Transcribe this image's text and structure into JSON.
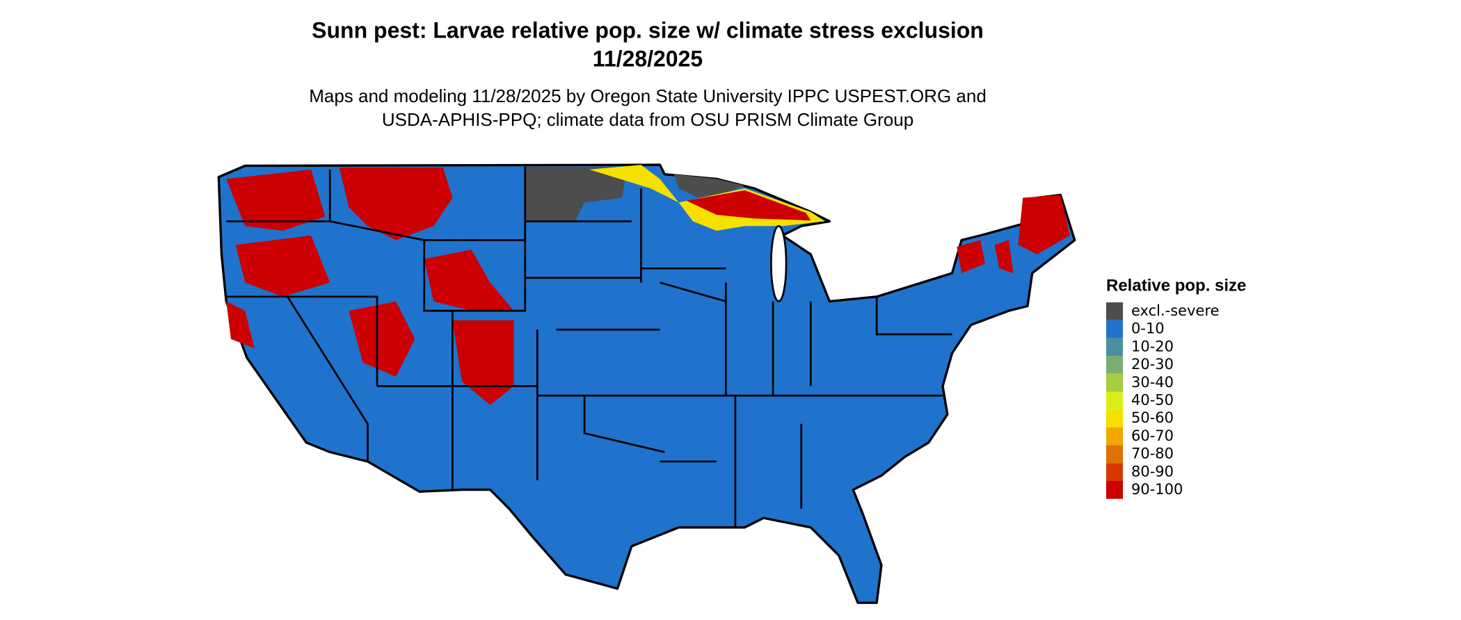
{
  "header": {
    "title": [
      "Sunn pest: Larvae relative pop. size w/ climate stress exclusion",
      "11/28/2025"
    ],
    "subtitle": [
      "Maps and modeling 11/28/2025 by Oregon State University IPPC USPEST.ORG and",
      "USDA-APHIS-PPQ; climate data from OSU PRISM Climate Group"
    ]
  },
  "legend": {
    "title": "Relative pop. size",
    "items": [
      {
        "label": "excl.-severe",
        "color": "#4d4d4d"
      },
      {
        "label": "0-10",
        "color": "#1f73cc"
      },
      {
        "label": "10-20",
        "color": "#4a8fa0"
      },
      {
        "label": "20-30",
        "color": "#7aad74"
      },
      {
        "label": "30-40",
        "color": "#a8cc40"
      },
      {
        "label": "40-50",
        "color": "#dcee18"
      },
      {
        "label": "50-60",
        "color": "#f5e000"
      },
      {
        "label": "60-70",
        "color": "#f0a800"
      },
      {
        "label": "70-80",
        "color": "#e07000"
      },
      {
        "label": "80-90",
        "color": "#d83800"
      },
      {
        "label": "90-100",
        "color": "#cc0000"
      }
    ]
  }
}
